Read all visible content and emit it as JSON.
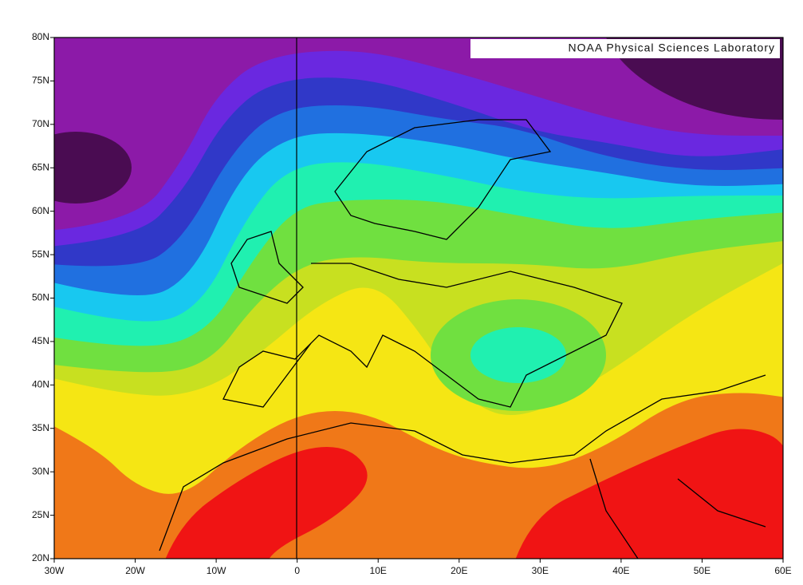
{
  "map": {
    "credit": "NOAA Physical Sciences Laboratory",
    "lat_labels": [
      "80N",
      "75N",
      "70N",
      "65N",
      "60N",
      "55N",
      "50N",
      "45N",
      "40N",
      "35N",
      "30N",
      "25N",
      "20N"
    ],
    "lon_labels": [
      "30W",
      "20W",
      "10W",
      "0",
      "10E",
      "20E",
      "30E",
      "40E",
      "50E",
      "60E"
    ]
  }
}
